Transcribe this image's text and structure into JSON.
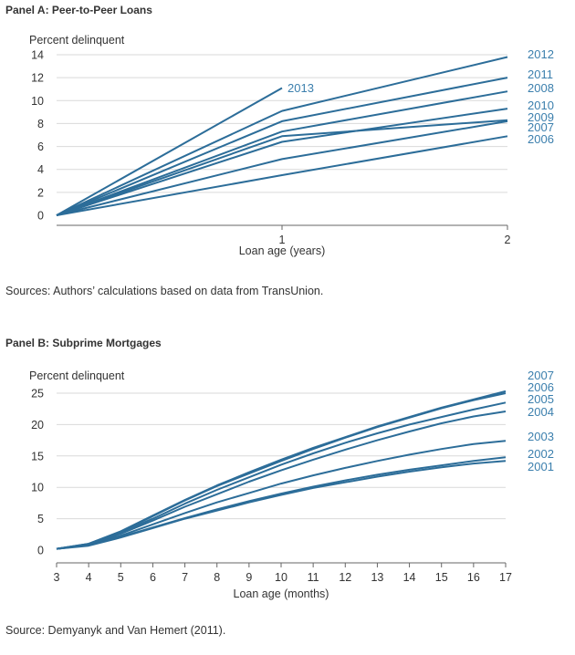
{
  "panelA": {
    "title": "Panel A: Peer-to-Peer Loans",
    "source": "Sources: Authors’ calculations based on data from TransUnion."
  },
  "panelB": {
    "title": "Panel B: Subprime Mortgages",
    "source": "Source: Demyanyk and Van Hemert (2011)."
  },
  "colors": {
    "line": "#2c6d99",
    "label": "#3b7fad",
    "grid": "#d9d9d9",
    "axis": "#666666"
  },
  "chart_data": [
    {
      "type": "line",
      "title": "Panel A: Peer-to-Peer Loans",
      "ylabel": "Percent delinquent",
      "xlabel": "Loan age (years)",
      "xlim": [
        0,
        2
      ],
      "ylim": [
        0,
        14
      ],
      "xticks": [
        1,
        2
      ],
      "yticks": [
        0,
        2,
        4,
        6,
        8,
        10,
        12,
        14
      ],
      "grid": true,
      "series": [
        {
          "name": "2013",
          "x": [
            0,
            1
          ],
          "values": [
            0,
            11.1
          ]
        },
        {
          "name": "2012",
          "x": [
            0,
            1,
            2
          ],
          "values": [
            0,
            9.1,
            13.8
          ]
        },
        {
          "name": "2011",
          "x": [
            0,
            1,
            2
          ],
          "values": [
            0,
            8.2,
            12.0
          ]
        },
        {
          "name": "2008",
          "x": [
            0,
            1,
            2
          ],
          "values": [
            0,
            7.3,
            10.8
          ]
        },
        {
          "name": "2010",
          "x": [
            0,
            1,
            2
          ],
          "values": [
            0,
            6.4,
            9.3
          ]
        },
        {
          "name": "2009",
          "x": [
            0,
            1,
            2
          ],
          "values": [
            0,
            6.9,
            8.3
          ]
        },
        {
          "name": "2007",
          "x": [
            0,
            1,
            2
          ],
          "values": [
            0,
            4.9,
            8.2
          ]
        },
        {
          "name": "2006",
          "x": [
            0,
            1,
            2
          ],
          "values": [
            0,
            3.5,
            6.9
          ]
        }
      ]
    },
    {
      "type": "line",
      "title": "Panel B: Subprime Mortgages",
      "ylabel": "Percent delinquent",
      "xlabel": "Loan age (months)",
      "xlim": [
        3,
        17
      ],
      "ylim": [
        0,
        25
      ],
      "xticks": [
        3,
        4,
        5,
        6,
        7,
        8,
        9,
        10,
        11,
        12,
        13,
        14,
        15,
        16,
        17
      ],
      "yticks": [
        0,
        5,
        10,
        15,
        20,
        25
      ],
      "grid": true,
      "series": [
        {
          "name": "2007",
          "x": [
            3,
            4,
            5,
            6,
            7,
            8,
            9,
            10,
            11,
            12,
            13,
            14,
            15,
            16,
            17
          ],
          "values": [
            0.2,
            1.0,
            3.0,
            5.5,
            8.0,
            10.3,
            12.4,
            14.4,
            16.3,
            18.0,
            19.7,
            21.2,
            22.7,
            24.0,
            25.3
          ]
        },
        {
          "name": "2006",
          "x": [
            3,
            4,
            5,
            6,
            7,
            8,
            9,
            10,
            11,
            12,
            13,
            14,
            15,
            16,
            17
          ],
          "values": [
            0.2,
            1.0,
            2.9,
            5.4,
            7.9,
            10.2,
            12.2,
            14.2,
            16.1,
            17.9,
            19.6,
            21.1,
            22.6,
            23.9,
            25.0
          ]
        },
        {
          "name": "2005",
          "x": [
            3,
            4,
            5,
            6,
            7,
            8,
            9,
            10,
            11,
            12,
            13,
            14,
            15,
            16,
            17
          ],
          "values": [
            0.2,
            0.9,
            2.8,
            5.0,
            7.4,
            9.6,
            11.6,
            13.6,
            15.4,
            17.1,
            18.6,
            20.0,
            21.2,
            22.4,
            23.5
          ]
        },
        {
          "name": "2004",
          "x": [
            3,
            4,
            5,
            6,
            7,
            8,
            9,
            10,
            11,
            12,
            13,
            14,
            15,
            16,
            17
          ],
          "values": [
            0.2,
            0.9,
            2.6,
            4.7,
            6.9,
            8.9,
            10.9,
            12.7,
            14.4,
            16.0,
            17.5,
            18.9,
            20.2,
            21.3,
            22.1
          ]
        },
        {
          "name": "2003",
          "x": [
            3,
            4,
            5,
            6,
            7,
            8,
            9,
            10,
            11,
            12,
            13,
            14,
            15,
            16,
            17
          ],
          "values": [
            0.2,
            0.8,
            2.3,
            4.1,
            5.9,
            7.6,
            9.1,
            10.6,
            11.9,
            13.1,
            14.2,
            15.2,
            16.1,
            16.9,
            17.4
          ]
        },
        {
          "name": "2002",
          "x": [
            3,
            4,
            5,
            6,
            7,
            8,
            9,
            10,
            11,
            12,
            13,
            14,
            15,
            16,
            17
          ],
          "values": [
            0.2,
            0.8,
            2.1,
            3.6,
            5.1,
            6.5,
            7.8,
            9.0,
            10.1,
            11.1,
            12.0,
            12.8,
            13.5,
            14.2,
            14.8
          ]
        },
        {
          "name": "2001",
          "x": [
            3,
            4,
            5,
            6,
            7,
            8,
            9,
            10,
            11,
            12,
            13,
            14,
            15,
            16,
            17
          ],
          "values": [
            0.2,
            0.7,
            2.0,
            3.5,
            5.0,
            6.3,
            7.6,
            8.8,
            9.9,
            10.8,
            11.7,
            12.5,
            13.2,
            13.8,
            14.2
          ]
        }
      ]
    }
  ]
}
